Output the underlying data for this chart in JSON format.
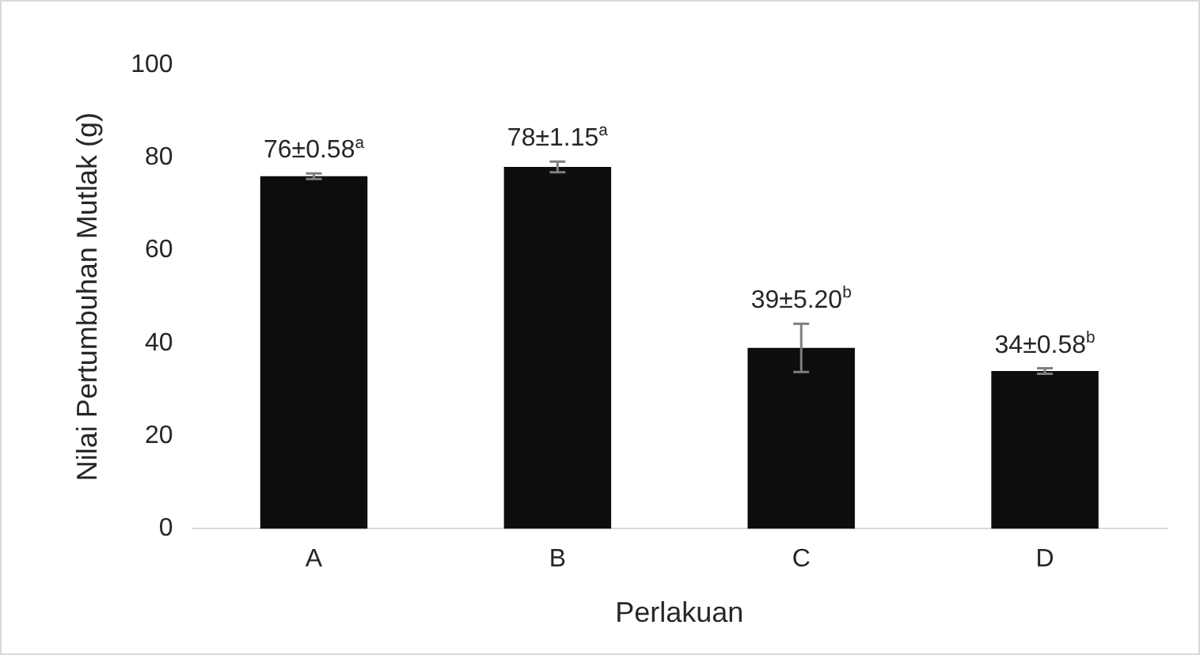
{
  "chart_data": {
    "type": "bar",
    "xlabel": "Perlakuan",
    "ylabel": "Nilai Pertumbuhan Mutlak (g)",
    "categories": [
      "A",
      "B",
      "C",
      "D"
    ],
    "values": [
      76,
      78,
      39,
      34
    ],
    "errors": [
      0.58,
      1.15,
      5.2,
      0.58
    ],
    "value_labels": [
      "76±0.58$^{a}$",
      "78±1.15$^{a}$",
      "39±5.20$^{b}$",
      "34±0.58$^{b}$"
    ],
    "color": "#0d0d0d",
    "ylim": [
      0,
      100
    ],
    "yticks": [
      0,
      20,
      40,
      60,
      80,
      100
    ],
    "grid": false,
    "legend": false
  }
}
